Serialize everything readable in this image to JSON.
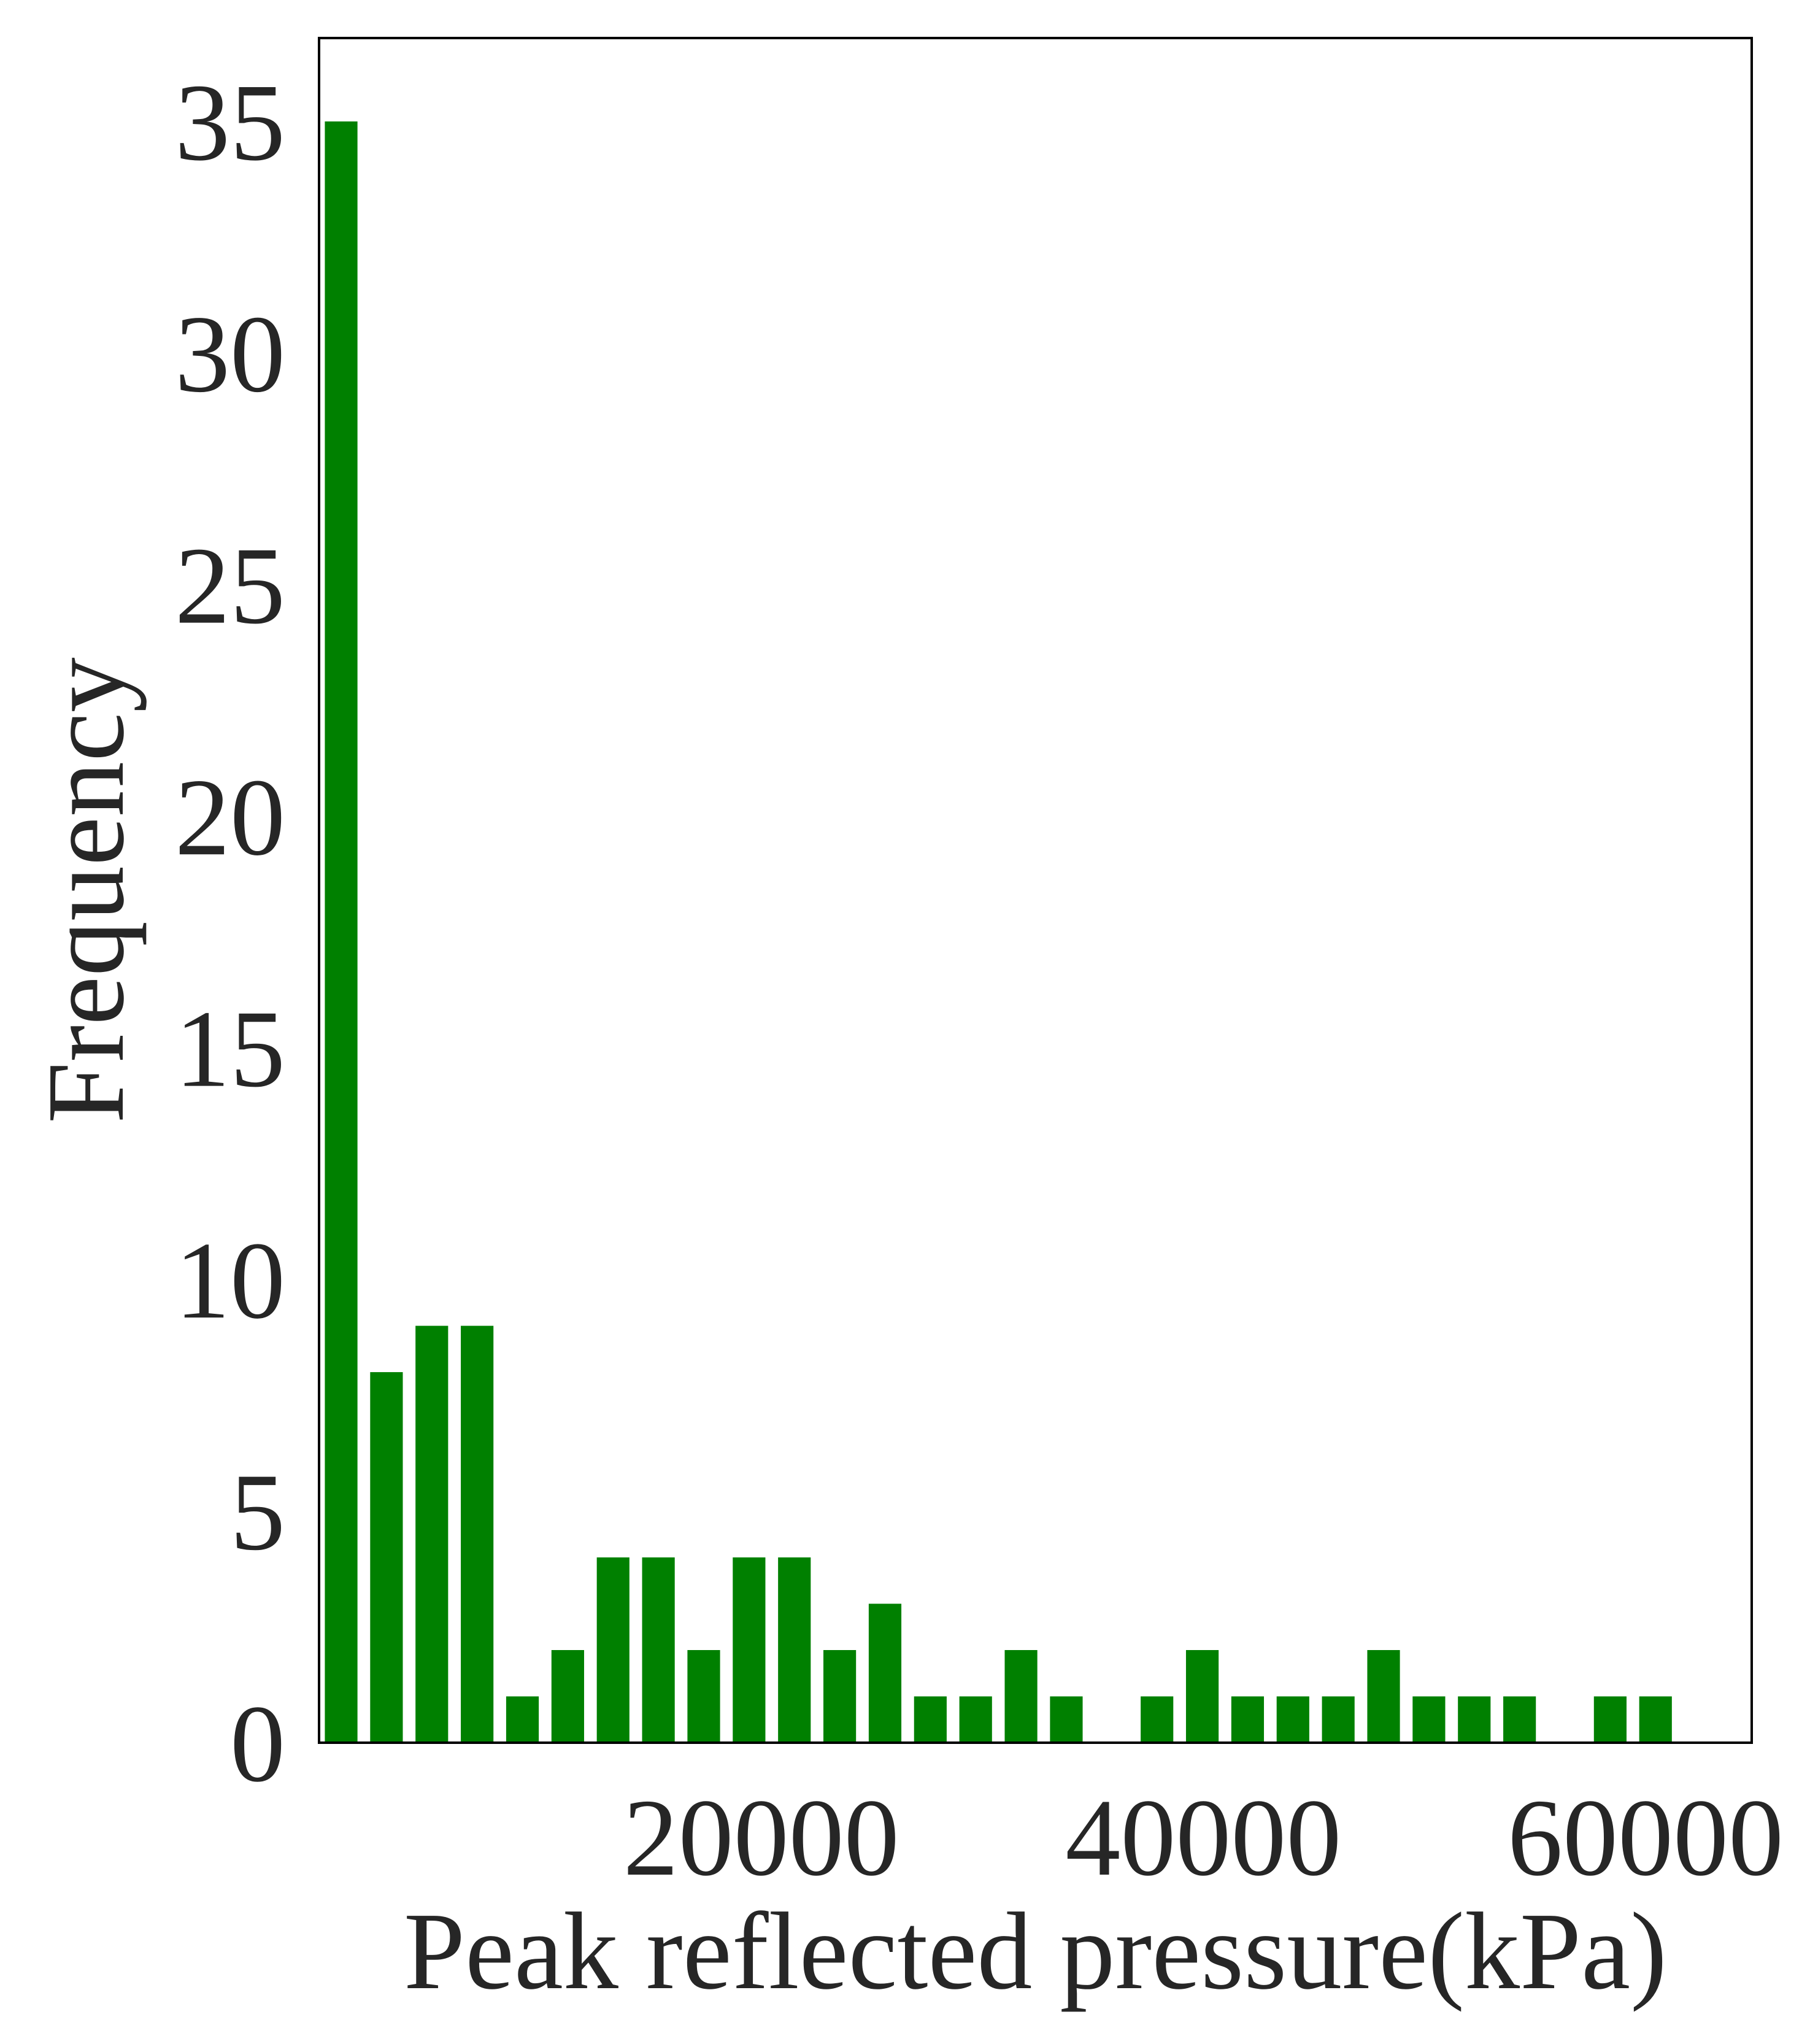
{
  "chart_data": {
    "type": "bar",
    "xlabel": "Peak reflected pressure(kPa)",
    "ylabel": "Frequency",
    "bar_color": "#008000",
    "frame_color": "#000000",
    "text_color": "#262626",
    "background": "#ffffff",
    "grid": false,
    "xlim": [
      0,
      64800
    ],
    "ylim": [
      0,
      36.8
    ],
    "xticks": [
      20000,
      40000,
      60000
    ],
    "yticks": [
      0,
      5,
      10,
      15,
      20,
      25,
      30,
      35
    ],
    "bin_width": 2050,
    "bar_width_fraction": 0.72,
    "bin_centers": [
      1000,
      3050,
      5100,
      7150,
      9200,
      11250,
      13300,
      15350,
      17400,
      19450,
      21500,
      23550,
      25600,
      27650,
      29700,
      31750,
      33800,
      35850,
      37900,
      39950,
      42000,
      44050,
      46100,
      48150,
      50200,
      52250,
      54300,
      56350,
      58400,
      60450,
      62500
    ],
    "values": [
      35,
      8,
      9,
      9,
      1,
      2,
      4,
      4,
      2,
      4,
      4,
      2,
      3,
      1,
      1,
      2,
      1,
      0,
      1,
      2,
      1,
      1,
      1,
      2,
      1,
      1,
      1,
      0,
      1,
      1,
      0
    ]
  }
}
